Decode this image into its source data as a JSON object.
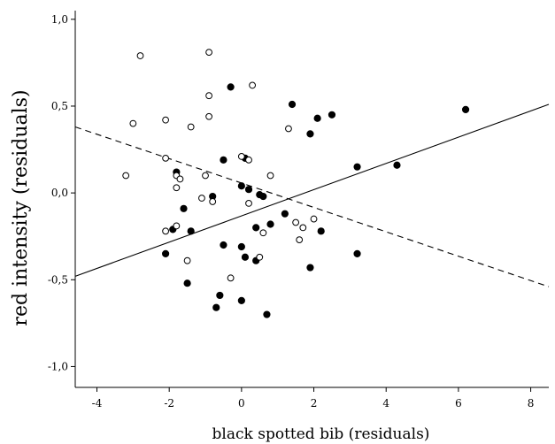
{
  "chart_data": {
    "type": "scatter",
    "title": "",
    "xlabel": "black spotted bib (residuals)",
    "ylabel": "red intensity (residuals)",
    "xlim": [
      -4.6,
      8.5
    ],
    "ylim": [
      -1.12,
      1.05
    ],
    "x_ticks": [
      -4,
      -2,
      0,
      2,
      4,
      6,
      8
    ],
    "x_tick_labels": [
      "-4",
      "-2",
      "0",
      "2",
      "4",
      "6",
      "8"
    ],
    "y_ticks": [
      -1.0,
      -0.5,
      0.0,
      0.5,
      1.0
    ],
    "y_tick_labels": [
      "-1,0",
      "-0,5",
      "0,0",
      "0,5",
      "1,0"
    ],
    "grid": false,
    "series": [
      {
        "marker": "filled",
        "color": "#000000",
        "points": [
          [
            -0.3,
            0.61
          ],
          [
            1.4,
            0.51
          ],
          [
            2.1,
            0.43
          ],
          [
            2.5,
            0.45
          ],
          [
            1.9,
            0.34
          ],
          [
            6.2,
            0.48
          ],
          [
            3.2,
            0.15
          ],
          [
            4.3,
            0.16
          ],
          [
            -1.8,
            0.12
          ],
          [
            -0.5,
            0.19
          ],
          [
            0.1,
            0.2
          ],
          [
            -0.8,
            -0.02
          ],
          [
            0.0,
            0.04
          ],
          [
            0.2,
            0.02
          ],
          [
            0.5,
            -0.01
          ],
          [
            0.6,
            -0.02
          ],
          [
            -1.6,
            -0.09
          ],
          [
            1.2,
            -0.12
          ],
          [
            0.8,
            -0.18
          ],
          [
            0.4,
            -0.2
          ],
          [
            2.2,
            -0.22
          ],
          [
            -1.9,
            -0.21
          ],
          [
            -1.4,
            -0.22
          ],
          [
            -2.1,
            -0.35
          ],
          [
            -0.5,
            -0.3
          ],
          [
            0.0,
            -0.31
          ],
          [
            0.1,
            -0.37
          ],
          [
            0.4,
            -0.39
          ],
          [
            3.2,
            -0.35
          ],
          [
            1.9,
            -0.43
          ],
          [
            -1.5,
            -0.52
          ],
          [
            -0.6,
            -0.59
          ],
          [
            -0.7,
            -0.66
          ],
          [
            0.0,
            -0.62
          ],
          [
            0.7,
            -0.7
          ]
        ]
      },
      {
        "marker": "open",
        "color": "#000000",
        "points": [
          [
            -2.8,
            0.79
          ],
          [
            -0.9,
            0.81
          ],
          [
            -3.0,
            0.4
          ],
          [
            -2.1,
            0.42
          ],
          [
            -0.9,
            0.56
          ],
          [
            0.3,
            0.62
          ],
          [
            -0.9,
            0.44
          ],
          [
            -1.4,
            0.38
          ],
          [
            1.3,
            0.37
          ],
          [
            -2.1,
            0.2
          ],
          [
            0.0,
            0.21
          ],
          [
            0.2,
            0.19
          ],
          [
            -3.2,
            0.1
          ],
          [
            -1.8,
            0.1
          ],
          [
            -1.7,
            0.08
          ],
          [
            -1.8,
            0.03
          ],
          [
            -1.0,
            0.1
          ],
          [
            0.8,
            0.1
          ],
          [
            -1.1,
            -0.03
          ],
          [
            -0.8,
            -0.05
          ],
          [
            0.2,
            -0.06
          ],
          [
            1.5,
            -0.17
          ],
          [
            1.7,
            -0.2
          ],
          [
            2.0,
            -0.15
          ],
          [
            -2.1,
            -0.22
          ],
          [
            -1.8,
            -0.19
          ],
          [
            0.6,
            -0.23
          ],
          [
            1.6,
            -0.27
          ],
          [
            -1.5,
            -0.39
          ],
          [
            0.5,
            -0.37
          ],
          [
            -0.3,
            -0.49
          ]
        ]
      }
    ],
    "fit_lines": [
      {
        "style": "solid",
        "x": [
          -4.6,
          8.5
        ],
        "y": [
          -0.48,
          0.51
        ]
      },
      {
        "style": "dashed",
        "x": [
          -4.6,
          8.5
        ],
        "y": [
          0.38,
          -0.54
        ]
      }
    ]
  }
}
